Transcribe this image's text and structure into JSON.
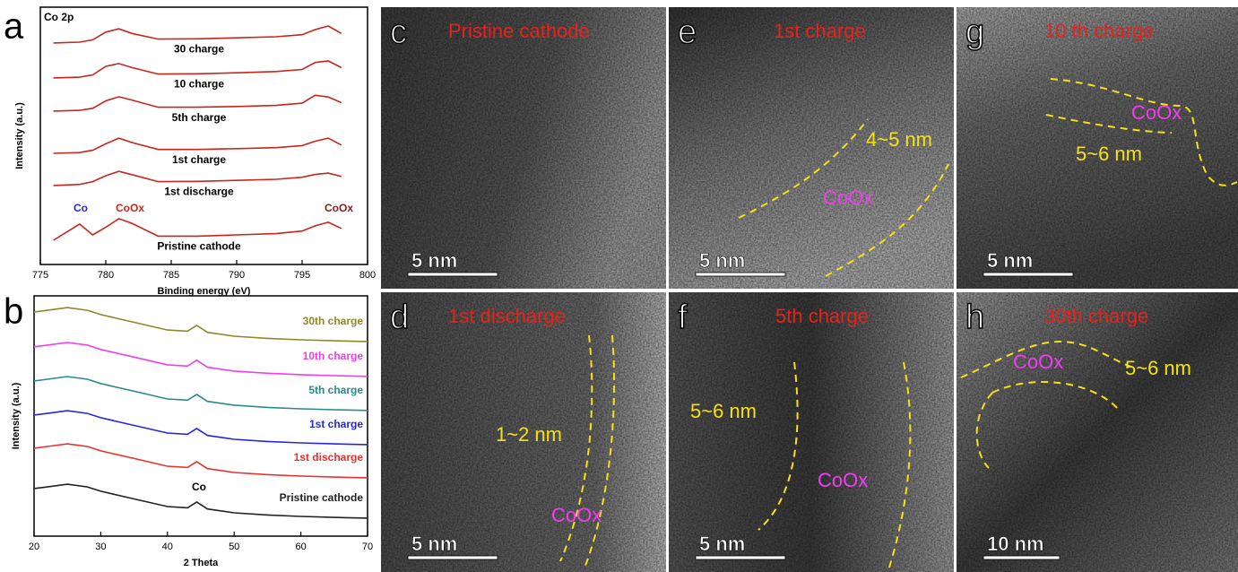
{
  "chart_data": [
    {
      "type": "line",
      "panel": "a",
      "subtitle": "Co 2p",
      "xlabel": "Binding energy (eV)",
      "ylabel": "Intensity (a.u.)",
      "x": [
        776,
        778,
        779,
        780,
        781,
        782,
        784,
        787,
        790,
        793,
        795,
        796,
        797,
        798
      ],
      "xlim": [
        775,
        800
      ],
      "xticks": [
        775,
        780,
        785,
        790,
        795,
        800
      ],
      "ylim": [
        0,
        100
      ],
      "series": [
        {
          "name": "30 charge",
          "color": "#c8261e",
          "values": [
            86.1,
            86.4,
            87.3,
            90.3,
            91.6,
            89.8,
            87.6,
            87.7,
            88.1,
            88.5,
            89.3,
            91.3,
            92.7,
            89.8
          ]
        },
        {
          "name": "10 charge",
          "color": "#c8261e",
          "values": [
            72.5,
            72.8,
            73.7,
            77.0,
            78.1,
            76.5,
            74.0,
            74.1,
            74.5,
            75.0,
            75.8,
            78.5,
            79.1,
            76.5
          ]
        },
        {
          "name": "5th charge",
          "color": "#c8261e",
          "values": [
            59.6,
            59.9,
            60.7,
            63.6,
            65.2,
            63.9,
            61.1,
            61.1,
            61.4,
            61.8,
            62.7,
            65.8,
            65.1,
            62.9
          ]
        },
        {
          "name": "1st charge",
          "color": "#c8261e",
          "values": [
            43.2,
            43.5,
            44.4,
            46.9,
            49.1,
            47.4,
            44.7,
            44.7,
            45.0,
            45.4,
            46.2,
            47.9,
            49.1,
            46.4
          ]
        },
        {
          "name": "1st discharge",
          "color": "#c8261e",
          "values": [
            30.7,
            31.1,
            32.2,
            34.5,
            36.2,
            34.9,
            32.2,
            32.3,
            32.7,
            33.1,
            33.9,
            35.0,
            35.5,
            34.2
          ]
        },
        {
          "name": "Pristine cathode",
          "color": "#c8261e",
          "values": [
            9.4,
            15.7,
            11.5,
            14.5,
            17.8,
            16.0,
            11.0,
            11.0,
            11.5,
            12.0,
            13.0,
            15.0,
            16.4,
            14.0
          ]
        }
      ],
      "annotations": [
        "Co",
        "CoOx",
        "CoOx"
      ]
    },
    {
      "type": "line",
      "panel": "b",
      "xlabel": "2 Theta",
      "ylabel": "Intensity (a.u.)",
      "x": [
        20,
        22,
        25,
        28,
        30,
        35,
        40,
        43,
        44.4,
        46,
        50,
        55,
        60,
        65,
        70
      ],
      "xlim": [
        20,
        70
      ],
      "xticks": [
        20,
        30,
        40,
        50,
        60,
        70
      ],
      "ylim": [
        0,
        100
      ],
      "series": [
        {
          "name": "30th charge",
          "color": "#8a8a2a",
          "values": [
            93.3,
            94.0,
            95.1,
            94.0,
            92.2,
            89.0,
            85.8,
            85.3,
            87.7,
            84.8,
            83.2,
            82.3,
            81.7,
            81.3,
            81.0
          ]
        },
        {
          "name": "10th charge",
          "color": "#f23cf2",
          "values": [
            78.8,
            79.5,
            80.6,
            79.5,
            77.7,
            74.5,
            71.3,
            70.8,
            73.2,
            70.3,
            68.7,
            67.8,
            67.2,
            66.8,
            66.5
          ]
        },
        {
          "name": "5th charge",
          "color": "#2a8a8a",
          "values": [
            64.6,
            65.3,
            66.4,
            65.3,
            63.5,
            60.3,
            57.1,
            56.6,
            59.0,
            56.1,
            54.5,
            53.6,
            53.0,
            52.6,
            52.3
          ]
        },
        {
          "name": "1st charge",
          "color": "#2626e0",
          "values": [
            50.4,
            51.1,
            52.2,
            51.1,
            49.3,
            46.1,
            42.9,
            42.4,
            44.8,
            41.9,
            40.3,
            39.4,
            38.8,
            38.4,
            38.1
          ]
        },
        {
          "name": "1st discharge",
          "color": "#e8322c",
          "values": [
            36.6,
            37.3,
            38.4,
            37.3,
            35.5,
            32.3,
            29.1,
            28.6,
            31.0,
            28.1,
            26.5,
            25.6,
            25.0,
            24.6,
            24.3
          ]
        },
        {
          "name": "Pristine cathode",
          "color": "#222222",
          "values": [
            19.8,
            20.5,
            21.6,
            20.5,
            18.7,
            15.5,
            12.3,
            11.8,
            14.2,
            11.3,
            9.7,
            8.8,
            8.2,
            7.8,
            7.5
          ]
        }
      ],
      "annotations": [
        "Co"
      ]
    }
  ],
  "panels": [
    {
      "letter": "c",
      "title": "Pristine cathode",
      "scale_bar": "5 nm",
      "annotations": []
    },
    {
      "letter": "d",
      "title": "1st discharge",
      "scale_bar": "5 nm",
      "annotations": [
        "1~2 nm",
        "CoOx"
      ]
    },
    {
      "letter": "e",
      "title": "1st charge",
      "scale_bar": "5 nm",
      "annotations": [
        "4~5 nm",
        "CoOx"
      ]
    },
    {
      "letter": "f",
      "title": "5th charge",
      "scale_bar": "5 nm",
      "annotations": [
        "5~6 nm",
        "CoOx"
      ]
    },
    {
      "letter": "g",
      "title": "10 th charge",
      "scale_bar": "5 nm",
      "annotations": [
        "CoOx",
        "5~6 nm"
      ]
    },
    {
      "letter": "h",
      "title": "30th charge",
      "scale_bar": "10 nm",
      "annotations": [
        "CoOx",
        "5~6 nm"
      ]
    }
  ]
}
